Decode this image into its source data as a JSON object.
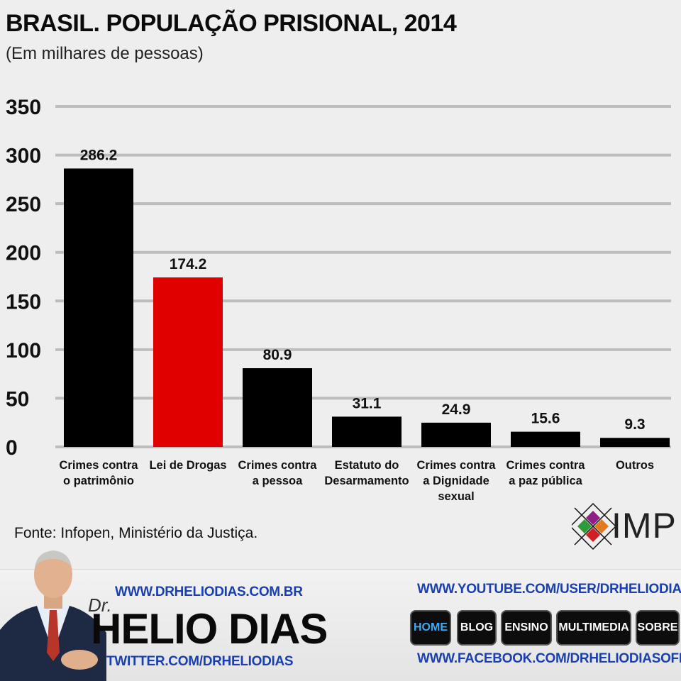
{
  "header": {
    "title": "BRASIL. POPULAÇÃO PRISIONAL, 2014",
    "subtitle": "(Em milhares de pessoas)"
  },
  "chart_data": {
    "type": "bar",
    "categories": [
      [
        "Crimes contra",
        "o patrimônio"
      ],
      [
        "Lei de Drogas"
      ],
      [
        "Crimes contra",
        "a pessoa"
      ],
      [
        "Estatuto do",
        "Desarmamento"
      ],
      [
        "Crimes contra",
        "a Dignidade",
        "sexual"
      ],
      [
        "Crimes contra",
        "a paz pública"
      ],
      [
        "Outros"
      ]
    ],
    "values": [
      286.2,
      174.2,
      80.9,
      31.1,
      24.9,
      15.6,
      9.3
    ],
    "value_labels": [
      "286.2",
      "174.2",
      "80.9",
      "31.1",
      "24.9",
      "15.6",
      "9.3"
    ],
    "bar_colors": [
      "#000000",
      "#e00000",
      "#000000",
      "#000000",
      "#000000",
      "#000000",
      "#000000"
    ],
    "yticks": [
      "0",
      "50",
      "100",
      "150",
      "200",
      "250",
      "300",
      "350"
    ],
    "ylim": [
      0,
      350
    ],
    "grid": true,
    "legend": "none"
  },
  "source": "Fonte: Infopen, Ministério da Justiça.",
  "logo": {
    "text": "IMP",
    "colors": [
      "#8e1f87",
      "#e07a1f",
      "#2f9a3a",
      "#d01f26"
    ]
  },
  "footer": {
    "brand_prefix": "Dr.",
    "brand_name": "HELIO DIAS",
    "site": "WWW.DRHELIODIAS.COM.BR",
    "twitter": "TWITTER.COM/DRHELIODIAS",
    "youtube": "WWW.YOUTUBE.COM/USER/DRHELIODIAS",
    "facebook": "WWW.FACEBOOK.COM/DRHELIODIASOFICIAL",
    "nav": [
      "HOME",
      "BLOG",
      "ENSINO",
      "MULTIMEDIA",
      "SOBRE"
    ],
    "active_nav": "HOME"
  }
}
